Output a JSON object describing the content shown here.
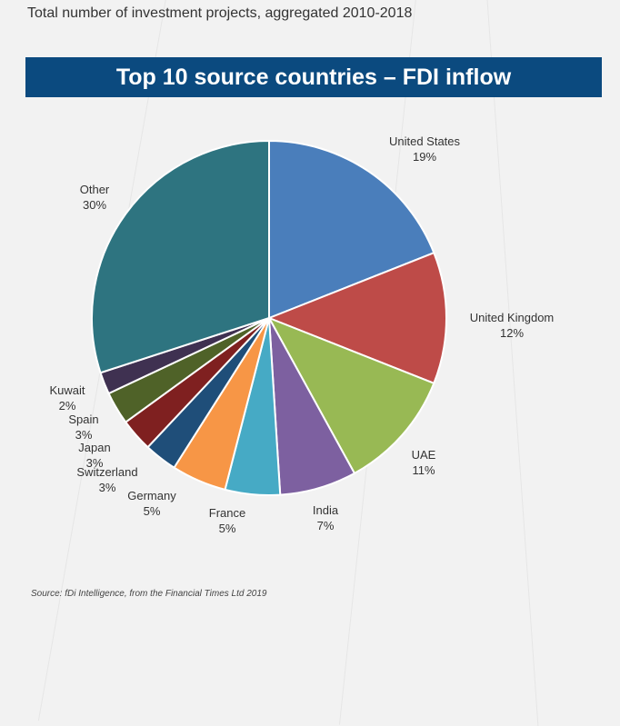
{
  "subtitle": "Total number of investment projects, aggregated 2010-2018",
  "chart_data": {
    "type": "pie",
    "title": "Top 10 source countries – FDI inflow",
    "slices": [
      {
        "label": "United States",
        "value": 19,
        "value_label": "19%",
        "color": "#4a7ebb"
      },
      {
        "label": "United Kingdom",
        "value": 12,
        "value_label": "12%",
        "color": "#be4b48"
      },
      {
        "label": "UAE",
        "value": 11,
        "value_label": "11%",
        "color": "#98b954"
      },
      {
        "label": "India",
        "value": 7,
        "value_label": "7%",
        "color": "#7d60a0"
      },
      {
        "label": "France",
        "value": 5,
        "value_label": "5%",
        "color": "#46aac5"
      },
      {
        "label": "Germany",
        "value": 5,
        "value_label": "5%",
        "color": "#f79646"
      },
      {
        "label": "Switzerland",
        "value": 3,
        "value_label": "3%",
        "color": "#1f4e79"
      },
      {
        "label": "Japan",
        "value": 3,
        "value_label": "3%",
        "color": "#7f2020"
      },
      {
        "label": "Spain",
        "value": 3,
        "value_label": "3%",
        "color": "#4f6228"
      },
      {
        "label": "Kuwait",
        "value": 2,
        "value_label": "2%",
        "color": "#3f3151"
      },
      {
        "label": "Other",
        "value": 30,
        "value_label": "30%",
        "color": "#2e7480"
      }
    ]
  },
  "source": "Source:  fDi Intelligence, from the Financial Times Ltd 2019"
}
